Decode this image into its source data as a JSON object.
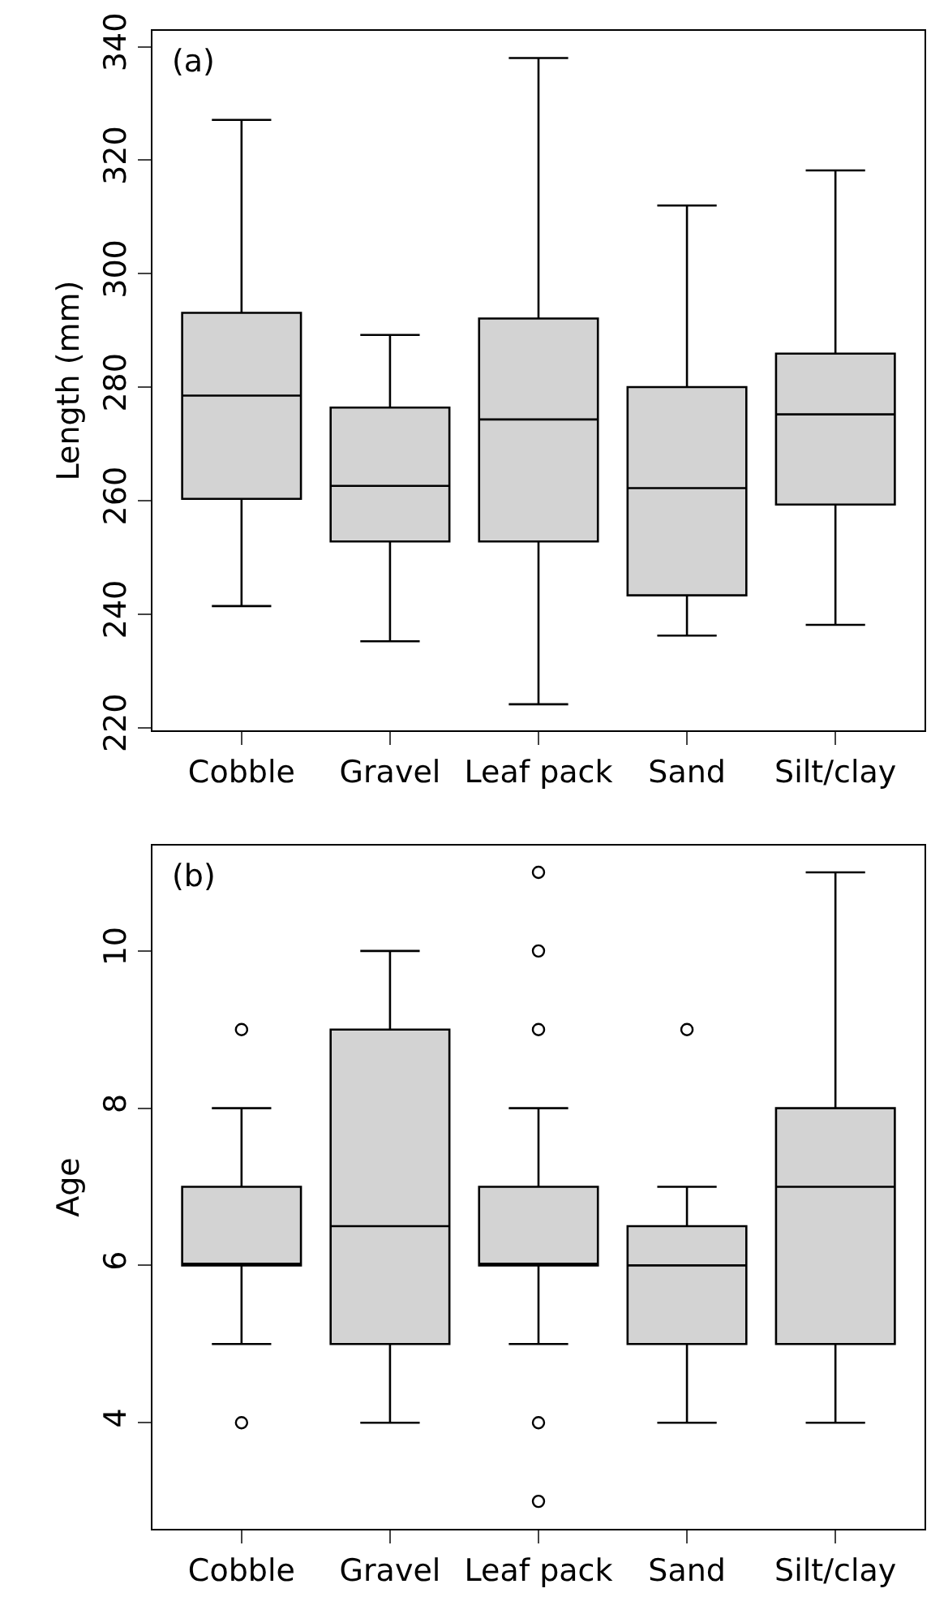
{
  "chart_data": [
    {
      "type": "box",
      "title": "(a)",
      "ylabel": "Length (mm)",
      "categories": [
        "Cobble",
        "Gravel",
        "Leaf pack",
        "Sand",
        "Silt/clay"
      ],
      "color": "#d3d3d3",
      "ylim": [
        219.5,
        342.8
      ],
      "yticks": [
        220,
        240,
        260,
        280,
        300,
        320,
        340
      ],
      "boxes": [
        {
          "low": 241.4,
          "q1": 260.3,
          "median": 278.5,
          "q3": 293.1,
          "high": 327.1
        },
        {
          "low": 235.2,
          "q1": 252.8,
          "median": 262.6,
          "q3": 276.4,
          "high": 289.2
        },
        {
          "low": 224.1,
          "q1": 252.8,
          "median": 274.3,
          "q3": 292.1,
          "high": 338.0
        },
        {
          "low": 236.2,
          "q1": 243.3,
          "median": 262.2,
          "q3": 280.0,
          "high": 312.0
        },
        {
          "low": 238.1,
          "q1": 259.3,
          "median": 275.2,
          "q3": 285.9,
          "high": 318.2
        }
      ]
    },
    {
      "type": "box",
      "title": "(b)",
      "ylabel": "Age",
      "categories": [
        "Cobble",
        "Gravel",
        "Leaf pack",
        "Sand",
        "Silt/clay"
      ],
      "color": "#d3d3d3",
      "ylim": [
        2.65,
        11.34
      ],
      "yticks": [
        4,
        6,
        8,
        10
      ],
      "boxes": [
        {
          "low": 5,
          "q1": 6,
          "median": 6,
          "q3": 7,
          "high": 8,
          "outliers": [
            9,
            4
          ]
        },
        {
          "low": 4,
          "q1": 5,
          "median": 6.5,
          "q3": 9,
          "high": 10
        },
        {
          "low": 5,
          "q1": 6,
          "median": 6,
          "q3": 7,
          "high": 8,
          "outliers": [
            11,
            10,
            9,
            4,
            3
          ]
        },
        {
          "low": 4,
          "q1": 5,
          "median": 6,
          "q3": 6.5,
          "high": 7,
          "outliers": [
            9
          ]
        },
        {
          "low": 4,
          "q1": 5,
          "median": 7,
          "q3": 8,
          "high": 11
        }
      ]
    }
  ]
}
